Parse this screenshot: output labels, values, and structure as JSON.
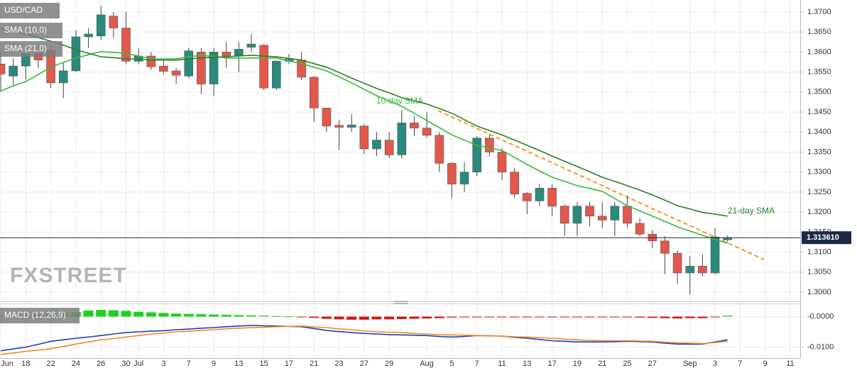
{
  "chart_data": [
    {
      "type": "candlestick",
      "title": "USD/CAD",
      "categories": [
        "Jun",
        null,
        "18",
        null,
        "22",
        null,
        "24",
        null,
        "26",
        null,
        "30",
        "Jul",
        null,
        "3",
        null,
        "7",
        null,
        "9",
        null,
        "13",
        null,
        "15",
        null,
        "17",
        null,
        "21",
        null,
        "23",
        null,
        "27",
        null,
        "29",
        null,
        null,
        "Aug",
        null,
        "5",
        null,
        "7",
        null,
        "11",
        null,
        "13",
        null,
        "17",
        null,
        "19",
        null,
        "21",
        null,
        "25",
        null,
        "27",
        null,
        null,
        "Sep",
        null,
        "3",
        null,
        "7",
        null,
        "9",
        null,
        "11"
      ],
      "open": [
        1.357,
        1.354,
        1.3565,
        1.3597,
        1.3605,
        1.3523,
        1.3553,
        1.3638,
        1.364,
        1.369,
        1.366,
        1.3577,
        1.359,
        1.3565,
        1.3553,
        1.354,
        1.36,
        1.352,
        1.36,
        1.359,
        1.3612,
        1.3617,
        1.351,
        1.3577,
        1.358,
        1.3537,
        1.346,
        1.3417,
        1.3412,
        1.3415,
        1.3358,
        1.338,
        1.3343,
        1.3423,
        1.341,
        1.3392,
        1.3322,
        1.327,
        1.33,
        1.3385,
        1.335,
        1.33,
        1.3247,
        1.3228,
        1.326,
        1.3215,
        1.3172,
        1.3215,
        1.319,
        1.318,
        1.3215,
        1.3172,
        1.3145,
        1.3128,
        1.3097,
        1.3048,
        1.3065,
        1.3048,
        1.3131,
        null,
        null,
        null,
        null,
        null
      ],
      "high": [
        1.36,
        1.3585,
        1.362,
        1.3615,
        1.3615,
        1.3575,
        1.3655,
        1.366,
        1.3715,
        1.37,
        1.37,
        1.361,
        1.36,
        1.358,
        1.356,
        1.361,
        1.361,
        1.361,
        1.3625,
        1.3625,
        1.3645,
        1.362,
        1.358,
        1.3595,
        1.36,
        1.354,
        1.346,
        1.343,
        1.3445,
        1.342,
        1.34,
        1.34,
        1.3455,
        1.344,
        1.345,
        1.34,
        1.3325,
        1.3325,
        1.339,
        1.3395,
        1.336,
        1.331,
        1.325,
        1.327,
        1.327,
        1.322,
        1.3225,
        1.3225,
        1.3225,
        1.3225,
        1.324,
        1.3185,
        1.3155,
        1.314,
        1.3105,
        1.309,
        1.3095,
        1.316,
        1.3142,
        null,
        null,
        null,
        null,
        null
      ],
      "low": [
        1.35,
        1.3515,
        1.353,
        1.356,
        1.351,
        1.3485,
        1.355,
        1.361,
        1.363,
        1.3635,
        1.357,
        1.357,
        1.3555,
        1.3545,
        1.352,
        1.3535,
        1.3495,
        1.349,
        1.356,
        1.355,
        1.36,
        1.3505,
        1.3505,
        1.357,
        1.353,
        1.3425,
        1.34,
        1.3355,
        1.34,
        1.3345,
        1.334,
        1.3335,
        1.3335,
        1.339,
        1.3385,
        1.33,
        1.3235,
        1.325,
        1.329,
        1.334,
        1.328,
        1.3235,
        1.3195,
        1.3215,
        1.319,
        1.314,
        1.314,
        1.3165,
        1.316,
        1.314,
        1.316,
        1.314,
        1.311,
        1.3045,
        1.302,
        1.2995,
        1.304,
        1.3045,
        1.3125,
        null,
        null,
        null,
        null,
        null
      ],
      "close": [
        1.3545,
        1.3565,
        1.3597,
        1.358,
        1.3523,
        1.3553,
        1.3638,
        1.3645,
        1.3693,
        1.366,
        1.3577,
        1.359,
        1.3563,
        1.3552,
        1.3542,
        1.3603,
        1.352,
        1.36,
        1.359,
        1.3607,
        1.362,
        1.351,
        1.3577,
        1.3582,
        1.3537,
        1.346,
        1.3415,
        1.3412,
        1.3418,
        1.3358,
        1.338,
        1.3343,
        1.3423,
        1.341,
        1.3392,
        1.3322,
        1.327,
        1.33,
        1.3385,
        1.335,
        1.33,
        1.3245,
        1.3228,
        1.326,
        1.3215,
        1.3172,
        1.3215,
        1.319,
        1.318,
        1.3215,
        1.3172,
        1.3145,
        1.3128,
        1.3097,
        1.3048,
        1.3065,
        1.3048,
        1.3138,
        1.3136,
        null,
        null,
        null,
        null,
        null
      ],
      "up_color": "#2b8a7e",
      "down_color": "#e0594c",
      "series": [
        {
          "name": "SMA (10,0)",
          "color": "#3cb83a",
          "values": [
            1.3503,
            1.3515,
            1.3526,
            1.3544,
            1.3562,
            1.3574,
            1.3585,
            1.3593,
            1.3601,
            1.3599,
            1.3597,
            1.359,
            1.3583,
            1.3583,
            1.3583,
            1.3588,
            1.3592,
            1.3589,
            1.3585,
            1.3585,
            1.3585,
            1.3585,
            1.3585,
            1.3578,
            1.3571,
            1.3562,
            1.3553,
            1.3538,
            1.3523,
            1.3507,
            1.3491,
            1.3478,
            1.3464,
            1.3447,
            1.3429,
            1.3411,
            1.3393,
            1.338,
            1.3367,
            1.3361,
            1.3354,
            1.3337,
            1.3319,
            1.3303,
            1.3287,
            1.3277,
            1.3266,
            1.3259,
            1.3252,
            1.3234,
            1.3216,
            1.3203,
            1.319,
            1.3177,
            1.3163,
            1.3153,
            1.3142,
            1.3132,
            1.3122,
            null,
            null,
            null,
            null,
            null
          ]
        },
        {
          "name": "SMA (21,0)",
          "color": "#2a7f2a",
          "values": [
            1.3659,
            1.3652,
            1.3645,
            1.3636,
            1.3627,
            1.3617,
            1.3606,
            1.3597,
            1.3588,
            1.3586,
            1.3583,
            1.3582,
            1.358,
            1.358,
            1.358,
            1.3583,
            1.3585,
            1.3587,
            1.3588,
            1.359,
            1.3592,
            1.359,
            1.3588,
            1.3584,
            1.358,
            1.3571,
            1.3562,
            1.3549,
            1.3535,
            1.3522,
            1.3509,
            1.3498,
            1.3486,
            1.3478,
            1.347,
            1.3459,
            1.3447,
            1.3431,
            1.3415,
            1.3404,
            1.3393,
            1.338,
            1.3367,
            1.3354,
            1.334,
            1.3327,
            1.3314,
            1.3301,
            1.3287,
            1.3277,
            1.3266,
            1.3255,
            1.3243,
            1.323,
            1.3216,
            1.3208,
            1.3199,
            1.3195,
            1.319,
            null,
            null,
            null,
            null,
            null
          ]
        }
      ],
      "ylim": [
        1.2977,
        1.373
      ],
      "yticks": [
        {
          "value": 1.3,
          "label": "1.3000"
        },
        {
          "value": 1.305,
          "label": "1.3050"
        },
        {
          "value": 1.31,
          "label": "1.3100"
        },
        {
          "value": 1.315,
          "label": "1.3150"
        },
        {
          "value": 1.32,
          "label": "1.3200"
        },
        {
          "value": 1.325,
          "label": "1.3250"
        },
        {
          "value": 1.33,
          "label": "1.3300"
        },
        {
          "value": 1.335,
          "label": "1.3350"
        },
        {
          "value": 1.34,
          "label": "1.3400"
        },
        {
          "value": 1.345,
          "label": "1.3450"
        },
        {
          "value": 1.35,
          "label": "1.3500"
        },
        {
          "value": 1.355,
          "label": "1.3550"
        },
        {
          "value": 1.36,
          "label": "1.3600"
        },
        {
          "value": 1.365,
          "label": "1.3650"
        },
        {
          "value": 1.37,
          "label": "1.3700"
        }
      ],
      "grid": true,
      "last_price": {
        "value": 1.31361,
        "label": "1.313610"
      },
      "annotations": [
        "10-day SMA",
        "21-day SMA"
      ],
      "watermark": "FXSTREET"
    },
    {
      "type": "macd",
      "title": "MACD (12,26,9)",
      "histogram": [
        0.0002,
        0.0004,
        0.0006,
        0.0008,
        0.001,
        0.0012,
        0.0015,
        0.002,
        0.0022,
        0.0021,
        0.0019,
        0.0016,
        0.0014,
        0.0012,
        0.001,
        0.0009,
        0.0008,
        0.0007,
        0.0006,
        0.0005,
        0.0004,
        0.0003,
        0.0002,
        0.0001,
        -0.0001,
        -0.0004,
        -0.0007,
        -0.0009,
        -0.001,
        -0.001,
        -0.0009,
        -0.0009,
        -0.0008,
        -0.0007,
        -0.0006,
        -0.0005,
        -0.0003,
        -0.0002,
        -0.0001,
        -0.0001,
        -0.0001,
        -0.0001,
        -0.0001,
        -0.0001,
        -0.0001,
        -0.0001,
        -0.0001,
        -0.0001,
        -0.0001,
        -0.0001,
        -0.0002,
        -0.0003,
        -0.0004,
        -0.0005,
        -0.0006,
        -0.0005,
        -0.0005,
        -0.0001,
        0.0003,
        null,
        null,
        null,
        null,
        null
      ],
      "up_color": "#1fd11f",
      "down_color": "#d41414",
      "series": [
        {
          "color": "#1f3fb0",
          "values": [
            -0.0112,
            -0.0106,
            -0.01,
            -0.0091,
            -0.0081,
            -0.0076,
            -0.0071,
            -0.0067,
            -0.0062,
            -0.0057,
            -0.0052,
            -0.005,
            -0.0048,
            -0.0046,
            -0.0043,
            -0.0041,
            -0.0038,
            -0.0036,
            -0.0033,
            -0.0031,
            -0.0029,
            -0.003,
            -0.0031,
            -0.0032,
            -0.0033,
            -0.0039,
            -0.0045,
            -0.0049,
            -0.0052,
            -0.0055,
            -0.0057,
            -0.0059,
            -0.006,
            -0.0061,
            -0.0062,
            -0.0065,
            -0.0067,
            -0.0065,
            -0.0062,
            -0.0063,
            -0.0064,
            -0.0068,
            -0.0071,
            -0.0075,
            -0.0079,
            -0.0081,
            -0.0083,
            -0.0083,
            -0.0083,
            -0.0082,
            -0.0081,
            -0.0082,
            -0.0083,
            -0.0087,
            -0.009,
            -0.009,
            -0.009,
            -0.0083,
            -0.0076,
            null,
            null,
            null,
            null,
            null
          ]
        },
        {
          "color": "#f08a24",
          "values": [
            -0.0124,
            -0.0119,
            -0.0114,
            -0.011,
            -0.0105,
            -0.0098,
            -0.009,
            -0.0083,
            -0.0076,
            -0.0072,
            -0.0067,
            -0.0062,
            -0.0057,
            -0.0054,
            -0.005,
            -0.0048,
            -0.0045,
            -0.0043,
            -0.004,
            -0.0038,
            -0.0036,
            -0.0035,
            -0.0033,
            -0.0032,
            -0.0031,
            -0.0034,
            -0.0036,
            -0.004,
            -0.0043,
            -0.0047,
            -0.005,
            -0.0051,
            -0.0052,
            -0.0055,
            -0.0057,
            -0.0059,
            -0.006,
            -0.0061,
            -0.0062,
            -0.0063,
            -0.0064,
            -0.0066,
            -0.0067,
            -0.0069,
            -0.0071,
            -0.0074,
            -0.0076,
            -0.0078,
            -0.0079,
            -0.0079,
            -0.0079,
            -0.008,
            -0.0081,
            -0.0084,
            -0.0086,
            -0.0087,
            -0.0088,
            -0.0085,
            -0.0081,
            null,
            null,
            null,
            null,
            null
          ]
        }
      ],
      "ylim": [
        -0.0136,
        0.0043
      ],
      "yticks": [
        {
          "value": 0,
          "label": "-0.0000"
        },
        {
          "value": -0.01,
          "label": "-0.0100"
        }
      ],
      "grid": true
    }
  ]
}
